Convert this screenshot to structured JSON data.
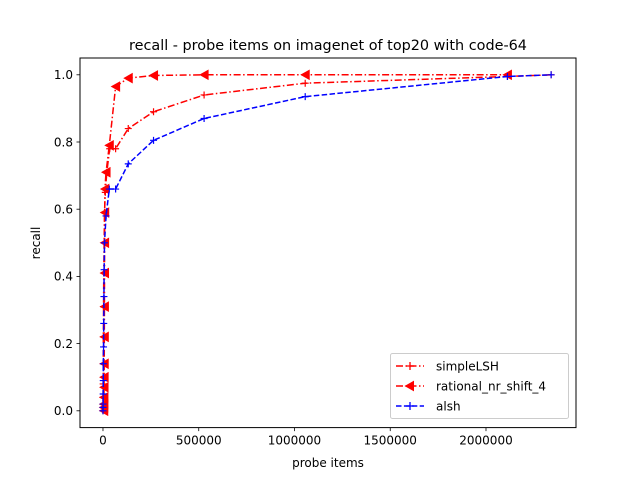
{
  "chart_data": {
    "type": "line",
    "title": "recall - probe items on imagenet of top20 with code-64",
    "xlabel": "probe items",
    "ylabel": "recall",
    "xlim": [
      -120000,
      2470000
    ],
    "ylim": [
      -0.05,
      1.05
    ],
    "x_ticks": [
      0,
      500000,
      1000000,
      1500000,
      2000000
    ],
    "x_tick_labels": [
      "0",
      "500000",
      "1000000",
      "1500000",
      "2000000"
    ],
    "y_ticks": [
      0.0,
      0.2,
      0.4,
      0.6,
      0.8,
      1.0
    ],
    "y_tick_labels": [
      "0.0",
      "0.2",
      "0.4",
      "0.6",
      "0.8",
      "1.0"
    ],
    "grid": false,
    "legend_position": "bottom-right",
    "series": [
      {
        "name": "simpleLSH",
        "color": "#ff0000",
        "linestyle": "dashdot",
        "marker": "plus",
        "points": [
          [
            0,
            0.0
          ],
          [
            100,
            0.01
          ],
          [
            200,
            0.02
          ],
          [
            400,
            0.04
          ],
          [
            800,
            0.08
          ],
          [
            1500,
            0.14
          ],
          [
            2000,
            0.22
          ],
          [
            3000,
            0.31
          ],
          [
            4000,
            0.41
          ],
          [
            6000,
            0.5
          ],
          [
            8000,
            0.59
          ],
          [
            12000,
            0.65
          ],
          [
            20000,
            0.71
          ],
          [
            35000,
            0.78
          ],
          [
            66000,
            0.78
          ],
          [
            132000,
            0.84
          ],
          [
            264000,
            0.89
          ],
          [
            528000,
            0.94
          ],
          [
            1056000,
            0.975
          ],
          [
            2112000,
            0.995
          ],
          [
            2340000,
            1.0
          ]
        ]
      },
      {
        "name": "rational_nr_shift_4",
        "color": "#ff0000",
        "linestyle": "dashdot",
        "marker": "triangle-left",
        "points": [
          [
            4000,
            0.0
          ],
          [
            4000,
            0.01
          ],
          [
            4500,
            0.02
          ],
          [
            5000,
            0.04
          ],
          [
            5500,
            0.07
          ],
          [
            6000,
            0.1
          ],
          [
            6500,
            0.14
          ],
          [
            7000,
            0.22
          ],
          [
            7500,
            0.31
          ],
          [
            8000,
            0.41
          ],
          [
            8500,
            0.5
          ],
          [
            9000,
            0.59
          ],
          [
            10000,
            0.66
          ],
          [
            16000,
            0.71
          ],
          [
            33000,
            0.79
          ],
          [
            66000,
            0.965
          ],
          [
            132000,
            0.99
          ],
          [
            264000,
            0.998
          ],
          [
            528000,
            1.0
          ],
          [
            1056000,
            1.0
          ],
          [
            2112000,
            1.0
          ]
        ]
      },
      {
        "name": "alsh",
        "color": "#0000ff",
        "linestyle": "dashed",
        "marker": "plus",
        "points": [
          [
            0,
            0.0
          ],
          [
            200,
            0.01
          ],
          [
            500,
            0.02
          ],
          [
            1000,
            0.05
          ],
          [
            1500,
            0.09
          ],
          [
            2000,
            0.14
          ],
          [
            3000,
            0.19
          ],
          [
            4000,
            0.26
          ],
          [
            5000,
            0.34
          ],
          [
            6000,
            0.42
          ],
          [
            8000,
            0.5
          ],
          [
            16000,
            0.58
          ],
          [
            33000,
            0.66
          ],
          [
            66000,
            0.66
          ],
          [
            132000,
            0.735
          ],
          [
            264000,
            0.805
          ],
          [
            528000,
            0.87
          ],
          [
            1056000,
            0.935
          ],
          [
            2112000,
            0.995
          ],
          [
            2340000,
            1.0
          ]
        ]
      }
    ]
  }
}
